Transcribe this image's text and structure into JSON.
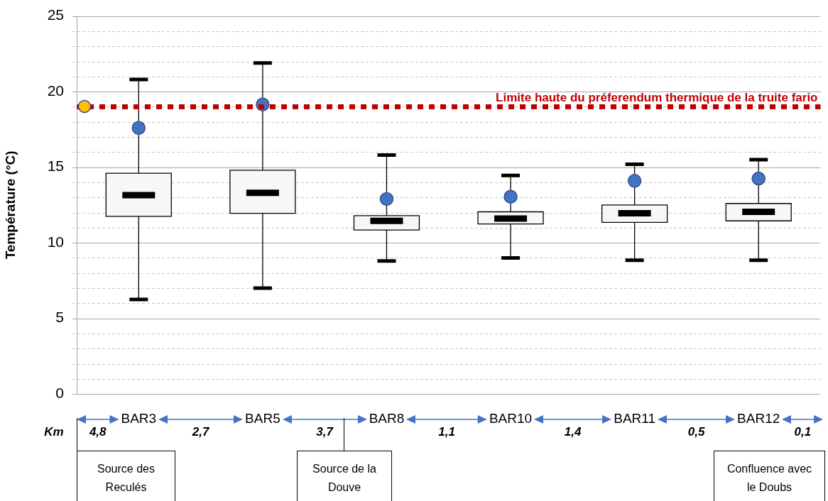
{
  "chart_data": {
    "type": "box",
    "ylabel": "Température (°C)",
    "categories": [
      "BAR3",
      "BAR5",
      "BAR8",
      "BAR10",
      "BAR11",
      "BAR12"
    ],
    "boxes": [
      {
        "low": 6.25,
        "q1": 11.75,
        "median": 13.15,
        "q3": 14.6,
        "high": 20.8
      },
      {
        "low": 7.0,
        "q1": 11.95,
        "median": 13.3,
        "q3": 14.8,
        "high": 21.9
      },
      {
        "low": 8.8,
        "q1": 10.85,
        "median": 11.45,
        "q3": 11.8,
        "high": 15.8
      },
      {
        "low": 9.0,
        "q1": 11.25,
        "median": 11.6,
        "q3": 12.05,
        "high": 14.45
      },
      {
        "low": 8.85,
        "q1": 11.35,
        "median": 11.95,
        "q3": 12.5,
        "high": 15.2
      },
      {
        "low": 8.85,
        "q1": 11.45,
        "median": 12.05,
        "q3": 12.6,
        "high": 15.5
      }
    ],
    "color": "#f7f7f7",
    "series": [
      {
        "type": "scatter",
        "color": "#4472c4",
        "x": [
          "BAR3",
          "BAR5",
          "BAR8",
          "BAR10",
          "BAR11",
          "BAR12"
        ],
        "values": [
          17.6,
          19.15,
          12.9,
          13.05,
          14.1,
          14.25
        ]
      }
    ],
    "marker": "circle",
    "ylim": [
      0,
      25
    ],
    "yticks": [
      0,
      {
        "value": 1,
        "label": null
      },
      {
        "value": 2,
        "label": null
      },
      {
        "value": 3,
        "label": null
      },
      {
        "value": 4,
        "label": null
      },
      5,
      {
        "value": 6,
        "label": null
      },
      {
        "value": 7,
        "label": null
      },
      {
        "value": 8,
        "label": null
      },
      {
        "value": 9,
        "label": null
      },
      10,
      {
        "value": 11,
        "label": null
      },
      {
        "value": 12,
        "label": null
      },
      {
        "value": 13,
        "label": null
      },
      {
        "value": 14,
        "label": null
      },
      15,
      {
        "value": 16,
        "label": null
      },
      {
        "value": 17,
        "label": null
      },
      {
        "value": 18,
        "label": null
      },
      {
        "value": 19,
        "label": null
      },
      20,
      {
        "value": 21,
        "label": null
      },
      {
        "value": 22,
        "label": null
      },
      {
        "value": 23,
        "label": null
      },
      {
        "value": 24,
        "label": null
      },
      25
    ],
    "grid": "y",
    "legend": false,
    "ref_lines": [
      {
        "axis": "y",
        "value": 19,
        "label": "Limite haute du préferendum thermique de la truite fario",
        "color": "#c00000",
        "line_style": "dotted"
      }
    ],
    "annotations": [
      "Km",
      "4,8",
      "2,7",
      "3,7",
      "1,1",
      "1,4",
      "0,5",
      "0,1",
      "Source des Reculés",
      "Source de la Douve",
      "Confluence avec le Doubs"
    ]
  }
}
